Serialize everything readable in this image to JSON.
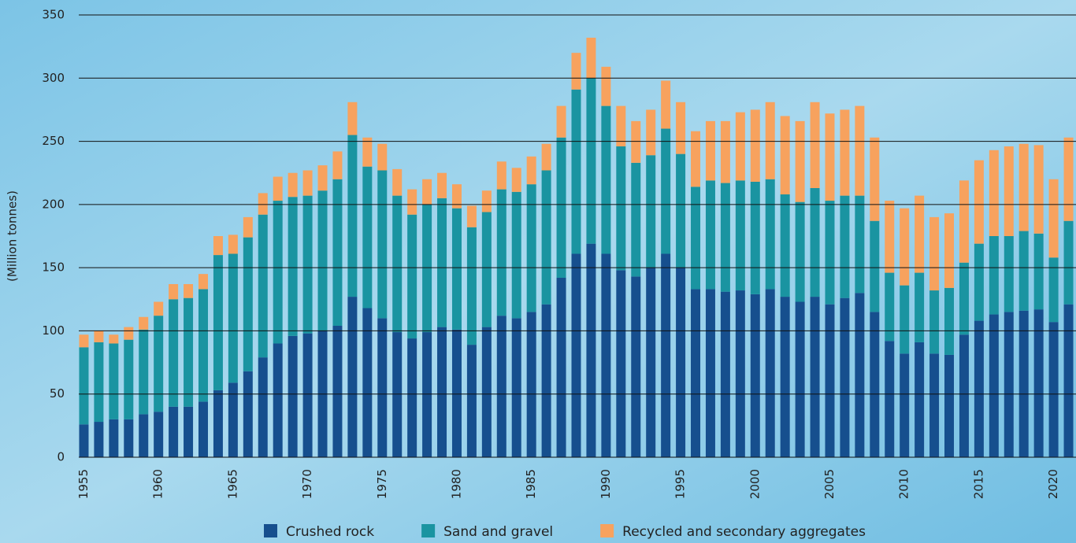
{
  "chart_data": {
    "type": "stacked-bar",
    "y_label": "(Million tonnes)",
    "categories": [
      "1955",
      null,
      null,
      null,
      null,
      "1960",
      null,
      null,
      null,
      null,
      "1965",
      null,
      null,
      null,
      null,
      "1970",
      null,
      null,
      null,
      null,
      "1975",
      null,
      null,
      null,
      null,
      "1980",
      null,
      null,
      null,
      null,
      "1985",
      null,
      null,
      null,
      null,
      "1990",
      null,
      null,
      null,
      null,
      "1995",
      null,
      null,
      null,
      null,
      "2000",
      null,
      null,
      null,
      null,
      "2005",
      null,
      null,
      null,
      null,
      "2010",
      null,
      null,
      null,
      null,
      "2015",
      null,
      null,
      null,
      null,
      "2020",
      null
    ],
    "series": [
      {
        "name": "Crushed rock",
        "color": "#164f8e",
        "values": [
          26,
          28,
          30,
          30,
          34,
          36,
          40,
          40,
          44,
          53,
          59,
          68,
          79,
          90,
          96,
          98,
          100,
          104,
          127,
          118,
          110,
          99,
          94,
          99,
          103,
          101,
          89,
          103,
          112,
          110,
          115,
          121,
          142,
          161,
          169,
          161,
          148,
          143,
          150,
          161,
          150,
          133,
          133,
          131,
          132,
          129,
          133,
          127,
          123,
          127,
          121,
          126,
          130,
          115,
          92,
          82,
          91,
          82,
          81,
          97,
          108,
          113,
          115,
          116,
          117,
          107,
          121
        ]
      },
      {
        "name": "Sand and gravel",
        "color": "#1a94a1",
        "values": [
          61,
          63,
          60,
          63,
          67,
          76,
          85,
          86,
          89,
          107,
          102,
          106,
          113,
          113,
          110,
          109,
          111,
          116,
          128,
          112,
          117,
          108,
          98,
          101,
          102,
          96,
          93,
          91,
          100,
          100,
          101,
          106,
          111,
          130,
          131,
          117,
          98,
          90,
          89,
          99,
          90,
          81,
          86,
          86,
          87,
          89,
          87,
          81,
          79,
          86,
          82,
          81,
          77,
          72,
          54,
          54,
          55,
          50,
          53,
          57,
          61,
          62,
          60,
          63,
          60,
          51,
          66
        ]
      },
      {
        "name": "Recycled and secondary aggregates",
        "color": "#f7a25e",
        "values": [
          10,
          9,
          7,
          10,
          10,
          11,
          12,
          11,
          12,
          15,
          15,
          16,
          17,
          19,
          19,
          20,
          20,
          22,
          26,
          23,
          21,
          21,
          20,
          20,
          20,
          19,
          17,
          17,
          22,
          19,
          22,
          21,
          25,
          29,
          32,
          31,
          32,
          33,
          36,
          38,
          41,
          44,
          47,
          49,
          54,
          57,
          61,
          62,
          64,
          68,
          69,
          68,
          71,
          66,
          57,
          61,
          61,
          58,
          59,
          65,
          66,
          68,
          71,
          69,
          70,
          62,
          66
        ]
      }
    ],
    "ylim": [
      0,
      350
    ],
    "yticks": [
      0,
      50,
      100,
      150,
      200,
      250,
      300,
      350
    ],
    "grid": true
  }
}
